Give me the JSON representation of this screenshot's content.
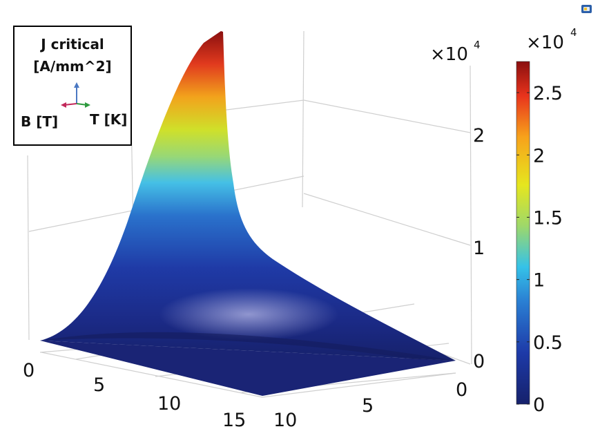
{
  "chart_data": {
    "type": "surface3d",
    "title": "J critical [A/mm^2]",
    "title_line1": "J critical",
    "title_line2": "[A/mm^2]",
    "axis_b_label": "B [T]",
    "axis_t_label": "T [K]",
    "b_ticks": [
      "0",
      "5",
      "10",
      "15"
    ],
    "t_ticks": [
      "0",
      "5",
      "10"
    ],
    "z_ticks": [
      "0",
      "1",
      "2"
    ],
    "z_multiplier": "×10",
    "z_multiplier_exp": "4",
    "colorbar_ticks": [
      "0",
      "0.5",
      "1",
      "1.5",
      "2",
      "2.5"
    ],
    "colorbar_multiplier": "×10",
    "colorbar_multiplier_exp": "4",
    "b_range": [
      0,
      15
    ],
    "t_range": [
      0,
      10
    ],
    "z_range": [
      0,
      27500
    ],
    "peak": {
      "B": 0,
      "T": 0,
      "J": 27500
    },
    "colormap": [
      "#16216b",
      "#1d3aa8",
      "#2a7fd3",
      "#35c2e8",
      "#9ed86a",
      "#e6e61e",
      "#f7a21b",
      "#e8331c",
      "#8a0f0f"
    ]
  }
}
